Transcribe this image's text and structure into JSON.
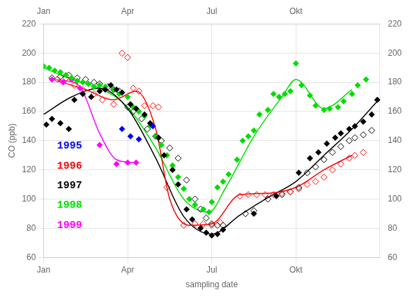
{
  "chart_data": {
    "type": "scatter",
    "xlabel": "sampling date",
    "ylabel": "CO (ppb)",
    "xlim": [
      1,
      13
    ],
    "xticks": [
      {
        "value": 1,
        "label": "Jan"
      },
      {
        "value": 4,
        "label": "Apr"
      },
      {
        "value": 7,
        "label": "Jul"
      },
      {
        "value": 10,
        "label": "Okt"
      }
    ],
    "ylim": [
      60,
      220
    ],
    "yticks": [
      60,
      80,
      100,
      120,
      140,
      160,
      180,
      200,
      220
    ],
    "y2lim": [
      60,
      220
    ],
    "y2ticks": [
      60,
      80,
      100,
      120,
      140,
      160,
      180,
      200,
      220
    ],
    "grid": true,
    "series": [
      {
        "name": "1995",
        "type": "scatter",
        "marker": "diamond",
        "color": "#0000ff",
        "x": [
          3.8,
          4.1,
          4.4,
          4.9
        ],
        "values": [
          148,
          143,
          141,
          150
        ]
      },
      {
        "name": "1997",
        "type": "scatter",
        "marker": "diamond",
        "color": "#000000",
        "x": [
          1.1,
          1.3,
          1.6,
          1.9,
          2.1,
          2.4,
          2.7,
          3.0,
          3.2,
          3.4,
          3.6,
          3.8,
          4.1,
          4.3,
          4.6,
          4.8,
          5.1,
          5.3,
          5.6,
          5.8,
          6.1,
          6.3,
          6.6,
          6.8,
          7.0,
          7.2,
          7.4,
          8.5,
          9.3,
          10.1,
          10.5,
          10.8,
          11.1,
          11.4,
          11.6,
          11.9,
          12.1,
          12.4,
          12.7,
          12.9
        ],
        "values": [
          151,
          155,
          152,
          148,
          168,
          172,
          170,
          174,
          175,
          178,
          175,
          173,
          165,
          162,
          158,
          152,
          142,
          130,
          120,
          110,
          93,
          86,
          80,
          77,
          75,
          76,
          79,
          90,
          102,
          118,
          128,
          132,
          138,
          142,
          145,
          148,
          150,
          153,
          158,
          168
        ]
      },
      {
        "name": "1998",
        "type": "scatter",
        "marker": "diamond",
        "color": "#00dd00",
        "x": [
          1.0,
          1.2,
          1.4,
          1.6,
          1.8,
          2.0,
          2.2,
          2.4,
          2.6,
          2.8,
          3.0,
          3.2,
          3.5,
          3.7,
          4.0,
          4.2,
          4.4,
          4.6,
          4.8,
          5.0,
          5.2,
          5.4,
          5.6,
          5.8,
          6.0,
          6.2,
          6.4,
          6.7,
          6.9,
          7.0,
          7.2,
          7.4,
          7.6,
          7.9,
          8.1,
          8.3,
          8.5,
          8.7,
          9.0,
          9.2,
          9.4,
          9.6,
          9.8,
          10.0,
          10.2,
          10.5,
          10.7,
          11.0,
          11.2,
          11.5,
          11.7,
          12.0,
          12.2,
          12.5
        ],
        "values": [
          191,
          190,
          188,
          187,
          185,
          183,
          181,
          180,
          179,
          177,
          178,
          177,
          175,
          172,
          170,
          163,
          160,
          157,
          150,
          143,
          137,
          130,
          123,
          115,
          107,
          100,
          96,
          93,
          91,
          98,
          108,
          112,
          117,
          127,
          140,
          143,
          147,
          158,
          161,
          172,
          170,
          172,
          174,
          193,
          178,
          171,
          164,
          161,
          162,
          163,
          167,
          172,
          178,
          182
        ]
      },
      {
        "name": "1999",
        "type": "scatter",
        "marker": "diamond",
        "color": "#ff00ff",
        "x": [
          1.3,
          1.7,
          2.0,
          2.3,
          3.0,
          3.6,
          4.0,
          4.3
        ],
        "values": [
          182,
          180,
          182,
          176,
          137,
          124,
          125,
          125
        ]
      },
      {
        "name": "1996",
        "type": "scatter",
        "marker": "diamond-open",
        "color": "#ff0000",
        "x": [
          1.5,
          1.8,
          2.1,
          2.4,
          2.8,
          3.1,
          3.5,
          3.8,
          4.0,
          4.2,
          4.4,
          4.6,
          4.9,
          5.1,
          5.4,
          6.0,
          6.4,
          6.7,
          7.0,
          7.3,
          8.0,
          8.3,
          8.6,
          8.9,
          9.2,
          9.5,
          9.8,
          10.1,
          10.4,
          10.7,
          11.0,
          11.3,
          11.6,
          11.9,
          12.1,
          12.4
        ],
        "values": [
          182,
          183,
          178,
          175,
          172,
          168,
          165,
          200,
          197,
          176,
          174,
          164,
          164,
          163,
          108,
          82,
          83,
          83,
          82,
          84,
          102,
          103,
          103,
          103,
          103,
          104,
          105,
          107,
          110,
          112,
          115,
          120,
          124,
          128,
          130,
          132
        ]
      },
      {
        "name": "1997",
        "type": "scatter",
        "marker": "diamond-open",
        "color": "#000000",
        "x": [
          1.3,
          1.6,
          1.9,
          2.2,
          2.5,
          2.8,
          3.0,
          3.3,
          3.5,
          3.7,
          4.0,
          4.2,
          4.5,
          4.7,
          5.0,
          5.2,
          5.5,
          5.8,
          6.1,
          6.4,
          6.6,
          6.8,
          7.0,
          7.2,
          7.4,
          8.2,
          8.5,
          9.0,
          9.5,
          9.8,
          10.1,
          10.4,
          10.7,
          11.0,
          11.3,
          11.6,
          11.9,
          12.1,
          12.4,
          12.7
        ],
        "values": [
          183,
          184,
          185,
          183,
          182,
          180,
          179,
          177,
          175,
          174,
          163,
          160,
          155,
          148,
          143,
          140,
          135,
          128,
          113,
          100,
          93,
          87,
          83,
          82,
          82,
          90,
          92,
          100,
          103,
          105,
          108,
          118,
          122,
          127,
          132,
          136,
          140,
          142,
          144,
          147
        ]
      },
      {
        "name": "1996",
        "type": "line",
        "marker": "none",
        "line_style": "solid",
        "color": "#ff0000",
        "x": [
          1.5,
          2.5,
          3.5,
          4.3,
          5.0,
          5.5,
          6.2,
          7.0,
          8.0,
          9.0,
          10.0,
          11.0,
          12.0
        ],
        "values": [
          181,
          175,
          168,
          174,
          148,
          100,
          82,
          83,
          103,
          104,
          108,
          120,
          130
        ]
      },
      {
        "name": "1997",
        "type": "line",
        "marker": "none",
        "line_style": "solid",
        "color": "#000000",
        "x": [
          1.0,
          2.0,
          3.0,
          4.0,
          5.0,
          6.0,
          7.0,
          8.0,
          9.0,
          10.0,
          11.0,
          12.0,
          12.9
        ],
        "values": [
          158,
          170,
          176,
          162,
          128,
          88,
          76,
          89,
          101,
          112,
          130,
          148,
          167
        ]
      },
      {
        "name": "1998",
        "type": "line",
        "marker": "none",
        "line_style": "solid",
        "color": "#00dd00",
        "x": [
          1.0,
          2.0,
          3.0,
          4.0,
          5.0,
          6.0,
          6.9,
          7.5,
          8.5,
          9.5,
          10.0,
          11.0,
          12.0
        ],
        "values": [
          190,
          182,
          176,
          163,
          135,
          100,
          91,
          108,
          143,
          170,
          182,
          162,
          175
        ]
      },
      {
        "name": "1999",
        "type": "line",
        "marker": "none",
        "line_style": "solid",
        "color": "#ff00ff",
        "x": [
          1.3,
          1.8,
          2.3,
          3.0,
          3.6,
          4.2
        ],
        "values": [
          182,
          181,
          177,
          145,
          127,
          125
        ]
      }
    ],
    "annotations": [
      {
        "text": "1995",
        "color": "#0000ff"
      },
      {
        "text": "1996",
        "color": "#ff0000"
      },
      {
        "text": "1997",
        "color": "#000000"
      },
      {
        "text": "1998",
        "color": "#00dd00"
      },
      {
        "text": "1999",
        "color": "#ff00ff"
      }
    ]
  }
}
